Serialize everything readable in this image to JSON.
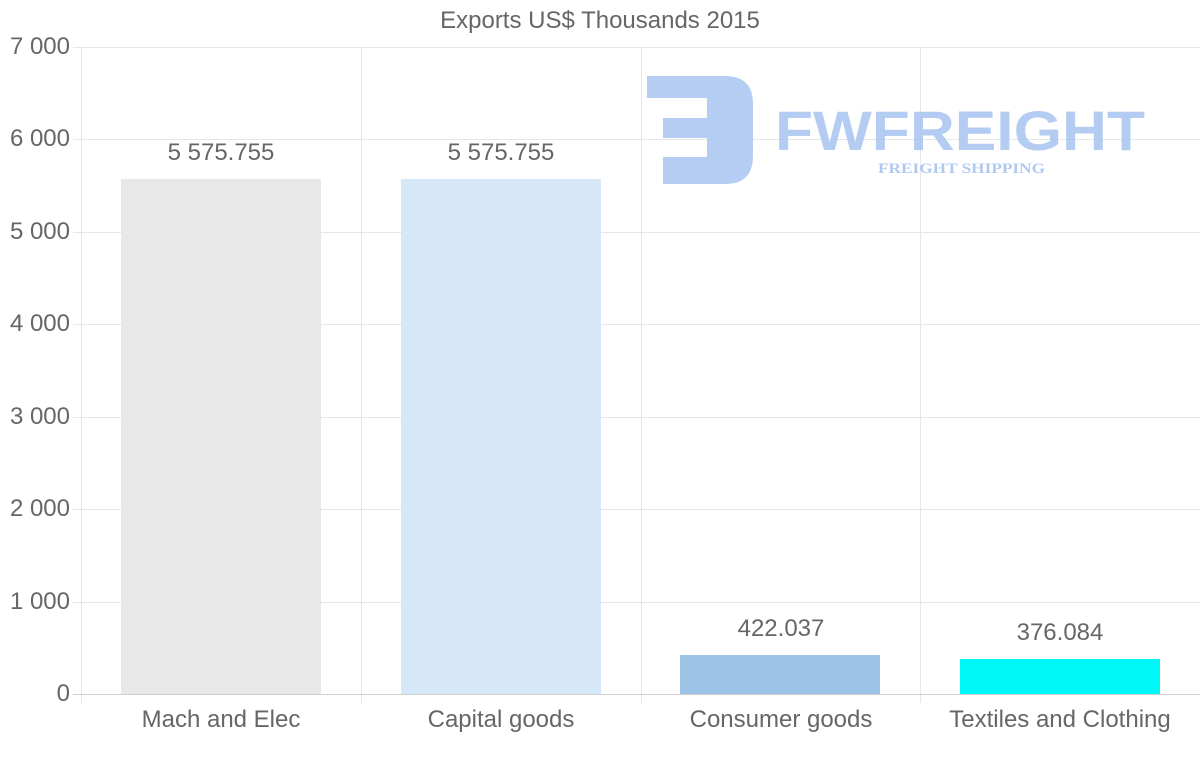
{
  "chart_data": {
    "type": "bar",
    "title": "Exports US$ Thousands 2015",
    "categories": [
      "Mach and Elec",
      "Capital goods",
      "Consumer goods",
      "Textiles and Clothing"
    ],
    "values": [
      5575.755,
      5575.755,
      422.037,
      376.084
    ],
    "value_labels": [
      "5 575.755",
      "5 575.755",
      "422.037",
      "376.084"
    ],
    "bar_colors": [
      "#e8e8e8",
      "#d6e7f8",
      "#9dc3e6",
      "#00f7f7"
    ],
    "xlabel": "",
    "ylabel": "",
    "ylim": [
      0,
      7000
    ],
    "yticks": [
      0,
      1000,
      2000,
      3000,
      4000,
      5000,
      6000,
      7000
    ],
    "ytick_labels": [
      "0",
      "1 000",
      "2 000",
      "3 000",
      "4 000",
      "5 000",
      "6 000",
      "7 000"
    ],
    "grid": true,
    "legend": null
  },
  "watermark": {
    "brand": "FWFREIGHT",
    "tagline": "FREIGHT SHIPPING",
    "color": "#a8c4f0"
  }
}
